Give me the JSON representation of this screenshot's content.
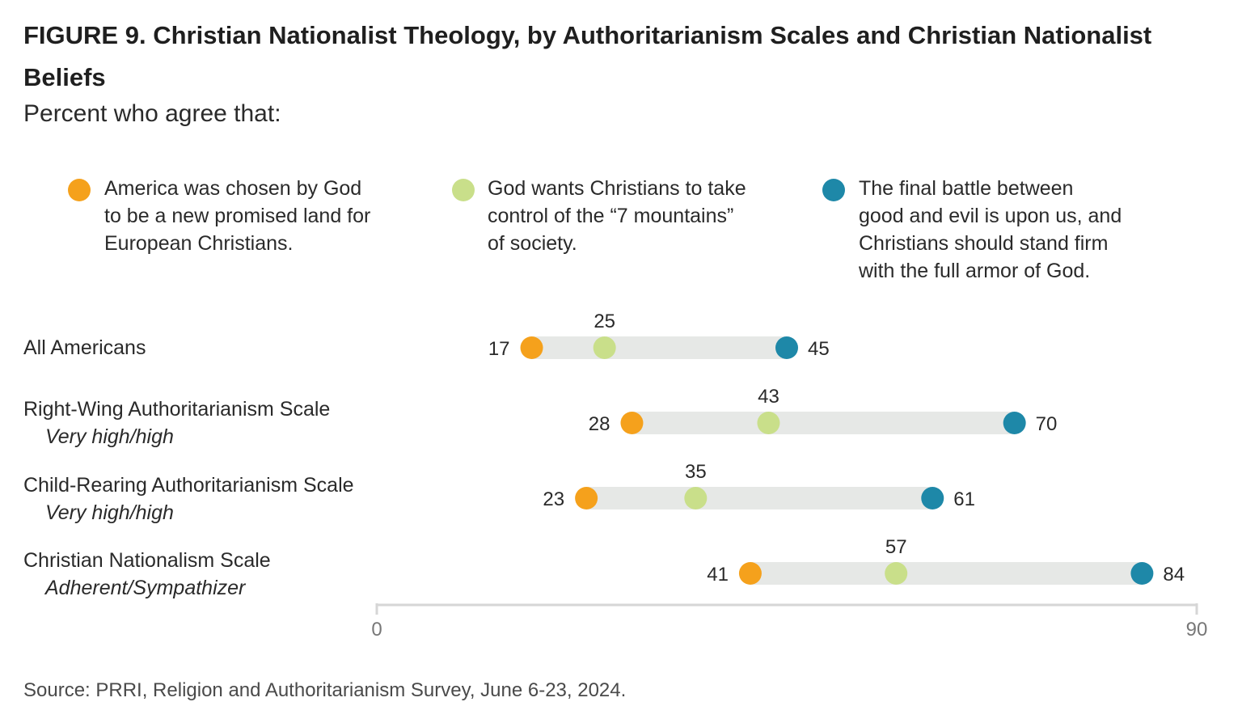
{
  "title": "FIGURE 9.  Christian Nationalist Theology, by Authoritarianism Scales and Christian Nationalist Beliefs",
  "subtitle": "Percent who agree that:",
  "source": "Source: PRRI, Religion and Authoritarianism Survey, June 6-23, 2024.",
  "colors": {
    "orange": "#f5a11c",
    "lightgreen": "#c9df8a",
    "teal": "#1e88a8",
    "track": "#e6e8e6",
    "axis": "#d6d6d6"
  },
  "chart_data": {
    "type": "dot-range",
    "xlim": [
      0,
      90
    ],
    "x_ticks": [
      "0",
      "90"
    ],
    "series": [
      {
        "name": "America was chosen by God to be a new promised land for European Christians.",
        "color": "#f5a11c"
      },
      {
        "name": "God wants Christians to take control of the “7 mountains” of society.",
        "color": "#c9df8a"
      },
      {
        "name": "The final battle between good and evil is upon us, and Christians should stand firm with the full armor of God.",
        "color": "#1e88a8"
      }
    ],
    "rows": [
      {
        "label": "All Americans",
        "sublabel": "",
        "values": [
          17,
          25,
          45
        ]
      },
      {
        "label": "Right-Wing Authoritarianism Scale",
        "sublabel": "Very high/high",
        "values": [
          28,
          43,
          70
        ]
      },
      {
        "label": "Child-Rearing Authoritarianism Scale",
        "sublabel": "Very high/high",
        "values": [
          23,
          35,
          61
        ]
      },
      {
        "label": "Christian Nationalism Scale",
        "sublabel": "Adherent/Sympathizer",
        "values": [
          41,
          57,
          84
        ]
      }
    ]
  },
  "legend": [
    {
      "lines": [
        "America was chosen by God",
        "to be a new promised land for",
        "European Christians."
      ]
    },
    {
      "lines": [
        "God wants Christians to take",
        "control of the “7 mountains”",
        "of society."
      ]
    },
    {
      "lines": [
        "The final battle between",
        "good and evil is upon us, and",
        "Christians should stand firm",
        "with the full armor of God."
      ]
    }
  ]
}
